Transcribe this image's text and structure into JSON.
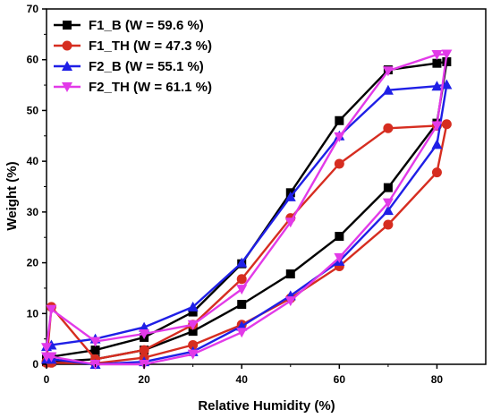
{
  "chart_data": {
    "type": "line",
    "title": "",
    "xlabel": "Relative Humidity (%)",
    "ylabel": "Weight (%)",
    "xlim": [
      0,
      90
    ],
    "ylim": [
      0,
      70
    ],
    "x_ticks": [
      0,
      20,
      40,
      60,
      80
    ],
    "y_ticks": [
      0,
      10,
      20,
      30,
      40,
      50,
      60,
      70
    ],
    "grid": false,
    "legend_position": "top-left",
    "series": [
      {
        "name": "F1_B (W = 59.6 %)",
        "color": "#000000",
        "marker": "square",
        "x": [
          0,
          1,
          10,
          20,
          30,
          40,
          50,
          60,
          70,
          80,
          82,
          80,
          70,
          60,
          50,
          40,
          30,
          20,
          10,
          1,
          0
        ],
        "y": [
          1.0,
          1.5,
          2.8,
          5.3,
          10.3,
          19.8,
          33.8,
          48.0,
          58.0,
          59.3,
          59.6,
          47.5,
          34.8,
          25.2,
          17.8,
          11.8,
          6.5,
          2.8,
          1.0,
          0.5,
          0.5
        ]
      },
      {
        "name": "F1_TH (W = 47.3 %)",
        "color": "#d62d20",
        "marker": "circle",
        "x": [
          0,
          1,
          10,
          20,
          30,
          40,
          50,
          60,
          70,
          80,
          82,
          80,
          70,
          60,
          50,
          40,
          30,
          20,
          10,
          1,
          0
        ],
        "y": [
          0.5,
          11.3,
          1.0,
          2.8,
          7.8,
          16.8,
          28.8,
          39.5,
          46.5,
          47.0,
          47.3,
          37.8,
          27.5,
          19.3,
          13.0,
          7.8,
          3.8,
          1.3,
          0.2,
          0.3,
          0.3
        ]
      },
      {
        "name": "F2_B (W = 55.1 %)",
        "color": "#1f1fe6",
        "marker": "triangle-up",
        "x": [
          0,
          1,
          10,
          20,
          30,
          40,
          50,
          60,
          70,
          80,
          82,
          80,
          70,
          60,
          50,
          40,
          30,
          20,
          10,
          1,
          0
        ],
        "y": [
          3.5,
          3.8,
          5.0,
          7.3,
          11.3,
          20.0,
          33.0,
          45.0,
          54.0,
          54.8,
          55.1,
          43.3,
          30.3,
          20.3,
          13.5,
          7.5,
          2.5,
          0.5,
          0.0,
          1.0,
          1.0
        ]
      },
      {
        "name": "F2_TH (W = 61.1 %)",
        "color": "#e23ae8",
        "marker": "triangle-down",
        "x": [
          0,
          1,
          10,
          20,
          30,
          40,
          50,
          60,
          70,
          80,
          82,
          80,
          70,
          60,
          50,
          40,
          30,
          20,
          10,
          1,
          0
        ],
        "y": [
          3.3,
          10.8,
          4.5,
          6.0,
          7.8,
          14.8,
          28.0,
          44.8,
          57.8,
          61.0,
          61.1,
          47.0,
          31.8,
          21.0,
          12.5,
          6.3,
          2.0,
          0.0,
          0.0,
          1.5,
          1.5
        ]
      }
    ]
  }
}
